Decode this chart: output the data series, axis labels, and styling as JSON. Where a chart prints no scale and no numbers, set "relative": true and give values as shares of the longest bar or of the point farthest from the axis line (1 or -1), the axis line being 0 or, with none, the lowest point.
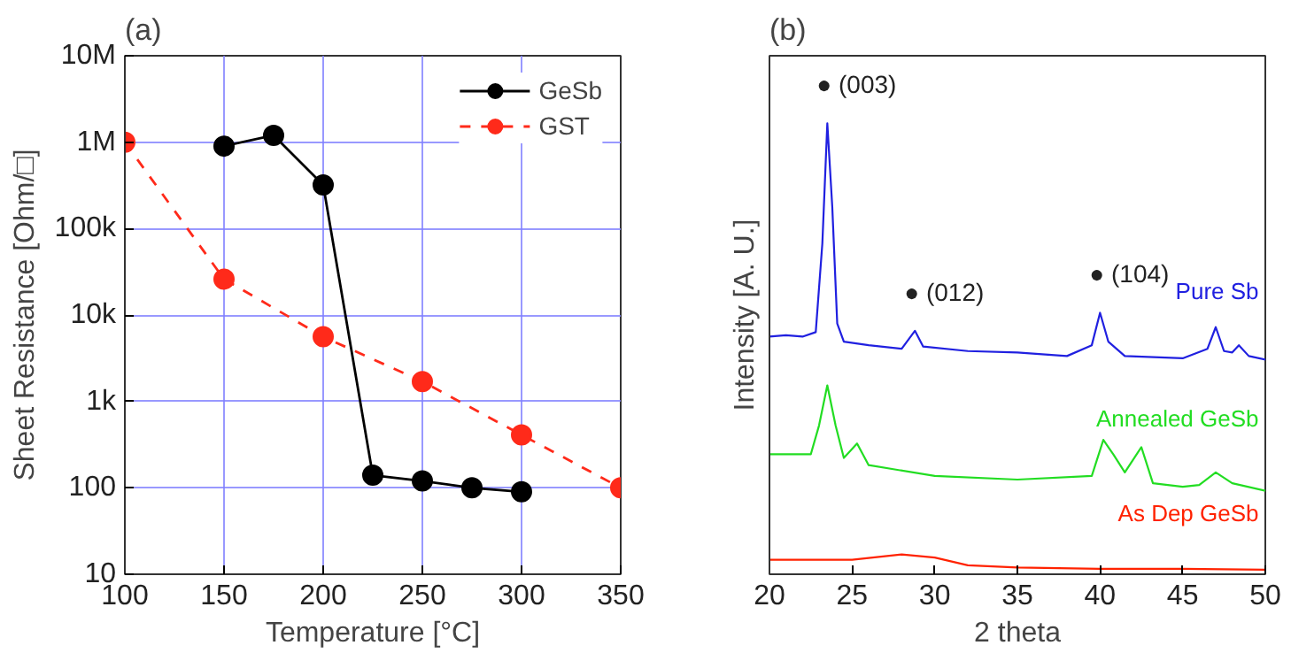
{
  "chart_data": [
    {
      "type": "line",
      "title": "(a)",
      "xlabel": "Temperature [°C]",
      "ylabel": "Sheet Resistance [Ohm/□]",
      "log": "y",
      "grid": true,
      "legend": "top right",
      "marker": "circle",
      "x": [
        150,
        175,
        200,
        225,
        250,
        275,
        300
      ],
      "xlim": [
        100,
        350
      ],
      "xticks": [
        100,
        150,
        200,
        250,
        300,
        350
      ],
      "ylim": [
        10,
        10000000
      ],
      "yticks": [
        10,
        100,
        {
          "value": 1000,
          "label": "1k"
        },
        {
          "value": 10000,
          "label": "10k"
        },
        {
          "value": 100000,
          "label": "100k"
        },
        {
          "value": 1000000,
          "label": "1M"
        },
        {
          "value": 10000000,
          "label": "10M"
        }
      ],
      "series": [
        {
          "name": "GeSb",
          "color": "#000000",
          "line_style": "solid",
          "values": [
            900000,
            1200000,
            320000,
            140,
            120,
            100,
            90
          ]
        },
        {
          "name": "GST",
          "color": "#ff2a1a",
          "line_style": "dashed",
          "x": [
            100,
            150,
            200,
            250,
            300,
            350
          ],
          "values": [
            1000000,
            26000,
            5600,
            1700,
            410,
            100
          ]
        }
      ]
    },
    {
      "type": "line",
      "title": "(b)",
      "xlabel": "2 theta",
      "ylabel": "Intensity [A. U.]",
      "relative": true,
      "tick_labels": "x",
      "legend": false,
      "xlim": [
        20,
        50
      ],
      "xticks": [
        20,
        25,
        30,
        35,
        40,
        45,
        50
      ],
      "series": [
        {
          "name": "Pure Sb",
          "color": "#2020e0",
          "x": [
            20,
            21,
            22,
            22.8,
            23.2,
            23.5,
            23.8,
            24.1,
            24.5,
            26,
            28,
            28.8,
            29.3,
            32,
            35,
            38,
            39.5,
            40.0,
            40.5,
            41.5,
            45,
            46.5,
            47,
            47.5,
            48,
            48.4,
            49,
            50
          ],
          "values": [
            0.527,
            0.53,
            0.527,
            0.537,
            0.734,
            1.0,
            0.815,
            0.556,
            0.516,
            0.508,
            0.5,
            0.54,
            0.505,
            0.495,
            0.492,
            0.484,
            0.508,
            0.58,
            0.516,
            0.484,
            0.479,
            0.5,
            0.548,
            0.495,
            0.492,
            0.508,
            0.484,
            0.476
          ]
        },
        {
          "name": "Annealed GeSb",
          "color": "#22dd22",
          "x": [
            20,
            22.5,
            23.0,
            23.5,
            24.0,
            24.5,
            25.3,
            26,
            30,
            35,
            39.5,
            40.2,
            40.8,
            41.5,
            42.5,
            43.2,
            45,
            46,
            47,
            48,
            50
          ],
          "values": [
            0.266,
            0.266,
            0.33,
            0.419,
            0.33,
            0.258,
            0.29,
            0.242,
            0.218,
            0.21,
            0.218,
            0.298,
            0.266,
            0.226,
            0.282,
            0.202,
            0.194,
            0.198,
            0.226,
            0.202,
            0.185
          ]
        },
        {
          "name": "As Dep GeSb",
          "color": "#ff2200",
          "x": [
            20,
            25,
            28,
            30,
            32,
            35,
            40,
            45,
            50
          ],
          "values": [
            0.032,
            0.032,
            0.044,
            0.037,
            0.02,
            0.015,
            0.012,
            0.012,
            0.01
          ]
        }
      ],
      "annotations": [
        {
          "text": "● (003)",
          "x": 23.5,
          "y": 1.0
        },
        {
          "text": "● (012)",
          "x": 28.8,
          "y": 0.54
        },
        {
          "text": "● (104)",
          "x": 40.0,
          "y": 0.58
        }
      ]
    }
  ]
}
